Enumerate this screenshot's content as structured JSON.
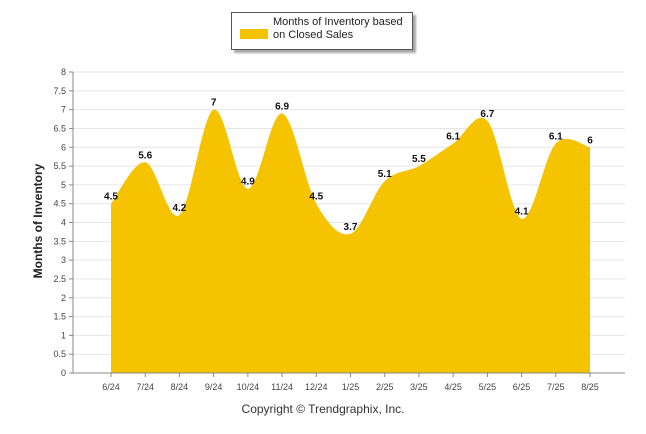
{
  "legend": {
    "label": "Months of Inventory based on Closed Sales"
  },
  "copyright": "Copyright © Trendgraphix, Inc.",
  "chart_data": {
    "type": "area",
    "title": "",
    "xlabel": "",
    "ylabel": "Months of Inventory",
    "ylim": [
      0,
      8
    ],
    "y_ticks": [
      "0",
      "0.5",
      "1",
      "1.5",
      "2",
      "2.5",
      "3",
      "3.5",
      "4",
      "4.5",
      "5",
      "5.5",
      "6",
      "6.5",
      "7",
      "7.5",
      "8"
    ],
    "categories": [
      "6/24",
      "7/24",
      "8/24",
      "9/24",
      "10/24",
      "11/24",
      "12/24",
      "1/25",
      "2/25",
      "3/25",
      "4/25",
      "5/25",
      "6/25",
      "7/25",
      "8/25"
    ],
    "series": [
      {
        "name": "Months of Inventory based on Closed Sales",
        "values": [
          4.5,
          5.6,
          4.2,
          7,
          4.9,
          6.9,
          4.5,
          3.7,
          5.1,
          5.5,
          6.1,
          6.7,
          4.1,
          6.1,
          6
        ],
        "data_labels": [
          "4.5",
          "5.6",
          "4.2",
          "7",
          "4.9",
          "6.9",
          "4.5",
          "3.7",
          "5.1",
          "5.5",
          "6.1",
          "6.7",
          "4.1",
          "6.1",
          "6"
        ]
      }
    ],
    "grid": true,
    "legend_position": "top-center",
    "colors": {
      "area": "#f6c300",
      "grid": "#e6e6e6",
      "axis": "#888888"
    }
  }
}
